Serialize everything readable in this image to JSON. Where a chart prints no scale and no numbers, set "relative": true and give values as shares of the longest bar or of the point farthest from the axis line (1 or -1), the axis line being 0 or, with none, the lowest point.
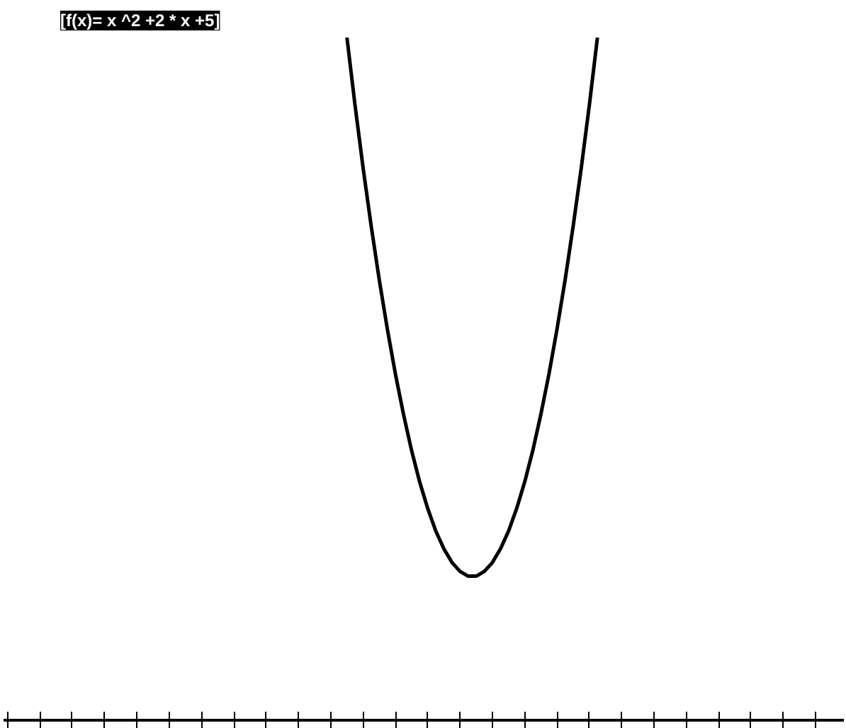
{
  "chart_data": {
    "type": "line",
    "title": "[f(x)= x ^2 +2 * x +5]",
    "relative": true,
    "categories": [
      null,
      null,
      null,
      null,
      null,
      null,
      null,
      null,
      null,
      null,
      null,
      null,
      null,
      null,
      null,
      null,
      null,
      null,
      null,
      null,
      null,
      null,
      null,
      null,
      null,
      null,
      null,
      null,
      null,
      null,
      null,
      null,
      null,
      null,
      null,
      null,
      null,
      null,
      null,
      null,
      null,
      null,
      null,
      null,
      null,
      null,
      null,
      null,
      null,
      null,
      null,
      null,
      null,
      null,
      null,
      null,
      null,
      null,
      null,
      null,
      null,
      null,
      null,
      null,
      null,
      null,
      null,
      null,
      null,
      null,
      null,
      null,
      null,
      null,
      null,
      null,
      null,
      null,
      null,
      null,
      null,
      null,
      null,
      null,
      null,
      null,
      null,
      null,
      null,
      null,
      null,
      null,
      null,
      null,
      null,
      null,
      null,
      null,
      null,
      null,
      null,
      null,
      null,
      null
    ],
    "series": [
      {
        "color": "#000000",
        "values": [
          null,
          null,
          null,
          null,
          null,
          null,
          null,
          null,
          null,
          null,
          null,
          null,
          null,
          null,
          null,
          null,
          null,
          null,
          null,
          null,
          null,
          null,
          null,
          null,
          null,
          null,
          null,
          null,
          null,
          null,
          null,
          null,
          null,
          null,
          null,
          null,
          null,
          null,
          null,
          null,
          null,
          null,
          1,
          0.901,
          0.809,
          0.724,
          0.645,
          0.573,
          0.507,
          0.448,
          0.395,
          0.349,
          0.31,
          0.277,
          0.251,
          0.231,
          0.218,
          0.211,
          0.211,
          0.218,
          0.231,
          0.251,
          0.277,
          0.31,
          0.349,
          0.395,
          0.448,
          0.507,
          0.573,
          0.645,
          0.724,
          0.809,
          0.901,
          1,
          null,
          null,
          null,
          null,
          null,
          null,
          null,
          null,
          null,
          null,
          null,
          null,
          null,
          null,
          null,
          null,
          null,
          null,
          null,
          null,
          null,
          null,
          null,
          null,
          null,
          null,
          null,
          null,
          null,
          null
        ]
      }
    ]
  }
}
